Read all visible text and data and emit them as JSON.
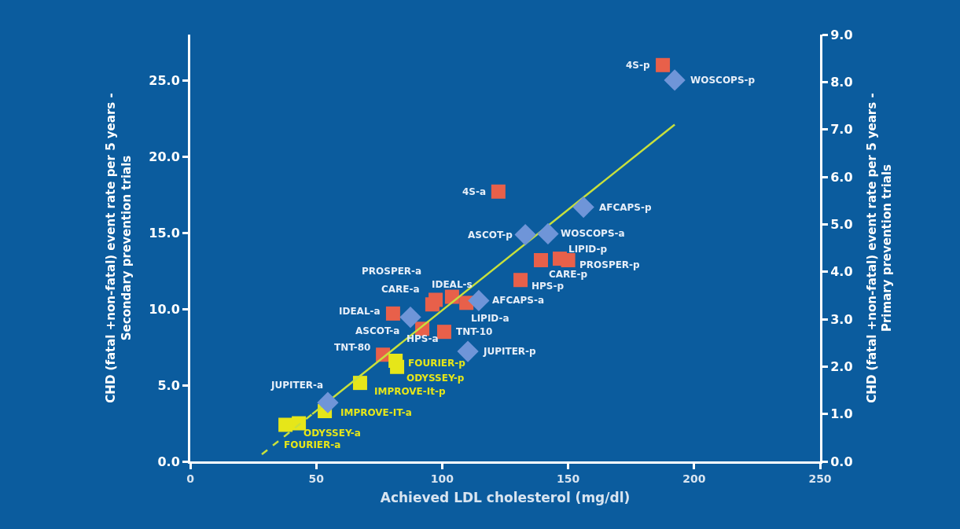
{
  "chart_data": {
    "type": "scatter",
    "xlabel": "Achieved LDL cholesterol (mg/dl)",
    "ylabel": "CHD (fatal +non-fatal) event rate per 5 years -\nSecondary prevention trials",
    "y2label": "CHD (fatal +non-fatal) event rate per 5 years -\nPrimary prevention trials",
    "xlim": [
      0,
      250
    ],
    "xticks": [
      0,
      50,
      100,
      150,
      200,
      250
    ],
    "ylim": [
      0,
      28
    ],
    "yticks": [
      {
        "value": 0,
        "label": "0.0"
      },
      {
        "value": 5,
        "label": "5.0"
      },
      {
        "value": 10,
        "label": "10.0"
      },
      {
        "value": 15,
        "label": "15.0"
      },
      {
        "value": 20,
        "label": "20.0"
      },
      {
        "value": 25,
        "label": "25.0"
      }
    ],
    "y2lim": [
      0,
      9
    ],
    "y2ticks": [
      {
        "value": 0,
        "label": "0.0"
      },
      {
        "value": 1,
        "label": "1.0"
      },
      {
        "value": 2,
        "label": "2.0"
      },
      {
        "value": 3,
        "label": "3.0"
      },
      {
        "value": 4,
        "label": "4.0"
      },
      {
        "value": 5,
        "label": "5.0"
      },
      {
        "value": 6,
        "label": "6.0"
      },
      {
        "value": 7,
        "label": "7.0"
      },
      {
        "value": 8,
        "label": "8.0"
      },
      {
        "value": 9,
        "label": "9.0"
      }
    ],
    "grid": false,
    "series": [
      {
        "name": "4S-p",
        "marker": "square",
        "color": "#e8604a",
        "axis": "y",
        "x": [
          187.6
        ],
        "values": [
          26.0
        ]
      },
      {
        "name": "4S-a",
        "marker": "square",
        "color": "#e8604a",
        "axis": "y",
        "x": [
          122.3
        ],
        "values": [
          17.7
        ]
      },
      {
        "name": "LIPID-p",
        "marker": "square",
        "color": "#e8604a",
        "axis": "y",
        "x": [
          146.7
        ],
        "values": [
          13.3
        ]
      },
      {
        "name": "PROSPER-p",
        "marker": "square",
        "color": "#e8604a",
        "axis": "y",
        "x": [
          150.0
        ],
        "values": [
          13.2
        ]
      },
      {
        "name": "CARE-p",
        "marker": "square",
        "color": "#e8604a",
        "axis": "y",
        "x": [
          139.2
        ],
        "values": [
          13.2
        ]
      },
      {
        "name": "HPS-p",
        "marker": "square",
        "color": "#e8604a",
        "axis": "y",
        "x": [
          131.1
        ],
        "values": [
          11.9
        ]
      },
      {
        "name": "PROSPER-a",
        "marker": "square",
        "color": "#e8604a",
        "axis": "y",
        "x": [
          97.4
        ],
        "values": [
          10.6
        ]
      },
      {
        "name": "CARE-a",
        "marker": "square",
        "color": "#e8604a",
        "axis": "y",
        "x": [
          96.1
        ],
        "values": [
          10.3
        ]
      },
      {
        "name": "IDEAL-s",
        "marker": "square",
        "color": "#e8604a",
        "axis": "y",
        "x": [
          103.9
        ],
        "values": [
          10.8
        ]
      },
      {
        "name": "LIPID-a",
        "marker": "square",
        "color": "#e8604a",
        "axis": "y",
        "x": [
          109.6
        ],
        "values": [
          10.4
        ]
      },
      {
        "name": "IDEAL-a",
        "marker": "square",
        "color": "#e8604a",
        "axis": "y",
        "x": [
          80.5
        ],
        "values": [
          9.7
        ]
      },
      {
        "name": "HPS-a",
        "marker": "square",
        "color": "#e8604a",
        "axis": "y",
        "x": [
          92.1
        ],
        "values": [
          8.7
        ]
      },
      {
        "name": "TNT-10",
        "marker": "square",
        "color": "#e8604a",
        "axis": "y",
        "x": [
          100.8
        ],
        "values": [
          8.5
        ]
      },
      {
        "name": "TNT-80",
        "marker": "square",
        "color": "#e8604a",
        "axis": "y",
        "x": [
          76.5
        ],
        "values": [
          7.0
        ]
      },
      {
        "name": "WOSCOPS-p",
        "marker": "diamond",
        "color": "#6f95d8",
        "axis": "y2",
        "x": [
          192.3
        ],
        "values": [
          8.04
        ]
      },
      {
        "name": "AFCAPS-p",
        "marker": "diamond",
        "color": "#6f95d8",
        "axis": "y2",
        "x": [
          156.1
        ],
        "values": [
          5.36
        ]
      },
      {
        "name": "ASCOT-p",
        "marker": "diamond",
        "color": "#6f95d8",
        "axis": "y2",
        "x": [
          133.0
        ],
        "values": [
          4.78
        ]
      },
      {
        "name": "WOSCOPS-a",
        "marker": "diamond",
        "color": "#6f95d8",
        "axis": "y2",
        "x": [
          142.0
        ],
        "values": [
          4.8
        ]
      },
      {
        "name": "AFCAPS-a",
        "marker": "diamond",
        "color": "#6f95d8",
        "axis": "y2",
        "x": [
          114.5
        ],
        "values": [
          3.39
        ]
      },
      {
        "name": "JUPITER-p",
        "marker": "diamond",
        "color": "#6f95d8",
        "axis": "y2",
        "x": [
          110.2
        ],
        "values": [
          2.32
        ]
      },
      {
        "name": "JUPITER-a",
        "marker": "diamond",
        "color": "#6f95d8",
        "axis": "y2",
        "x": [
          54.6
        ],
        "values": [
          1.24
        ]
      },
      {
        "name": "ASCOT-a",
        "marker": "diamond",
        "color": "#6f95d8",
        "axis": "y2",
        "x": [
          87.4
        ],
        "values": [
          3.04
        ]
      },
      {
        "name": "FOURIER-p",
        "marker": "square",
        "color": "#e6e619",
        "axis": "y",
        "x": [
          81.5
        ],
        "values": [
          6.6
        ]
      },
      {
        "name": "ODYSSEY-p",
        "marker": "square",
        "color": "#e6e619",
        "axis": "y",
        "x": [
          82.1
        ],
        "values": [
          6.2
        ]
      },
      {
        "name": "IMPROVE-It-p",
        "marker": "square",
        "color": "#e6e619",
        "axis": "y",
        "x": [
          67.4
        ],
        "values": [
          5.15
        ]
      },
      {
        "name": "IMPROVE-IT-a",
        "marker": "square",
        "color": "#e6e619",
        "axis": "y",
        "x": [
          53.4
        ],
        "values": [
          3.3
        ]
      },
      {
        "name": "ODYSSEY-a",
        "marker": "square",
        "color": "#e6e619",
        "axis": "y",
        "x": [
          43.1
        ],
        "values": [
          2.5
        ]
      },
      {
        "name": "FOURIER-a",
        "marker": "square",
        "color": "#e6e619",
        "axis": "y",
        "x": [
          37.8
        ],
        "values": [
          2.4
        ]
      },
      {
        "type": "line",
        "marker": "none",
        "line_style": "dashed",
        "color": "#c8e03c",
        "axis": "y",
        "x": [
          28.4,
          48.4
        ],
        "values": [
          0.46,
          3.1
        ]
      },
      {
        "type": "line",
        "marker": "none",
        "line_style": "solid",
        "color": "#c8e03c",
        "axis": "y",
        "x": [
          48.4,
          192.3
        ],
        "values": [
          3.1,
          22.1
        ]
      }
    ]
  }
}
